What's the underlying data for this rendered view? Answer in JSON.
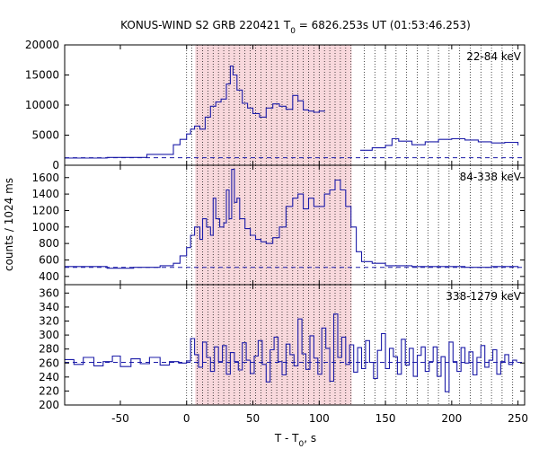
{
  "chart_data": {
    "type": "line",
    "title": {
      "main": "KONUS-WIND S2 GRB 220421 T",
      "sub": "0",
      "rest": " = 6826.253s UT (01:53:46.253)"
    },
    "xlabel": {
      "main": "T - T",
      "sub": "0",
      "rest": ", s"
    },
    "ylabel": "counts / 1024 ms",
    "xlim": [
      -92,
      255
    ],
    "x_ticks": [
      -50,
      0,
      50,
      100,
      150,
      200,
      250
    ],
    "x_tick_labels": [
      "-50",
      "0",
      "50",
      "100",
      "150",
      "200",
      "250"
    ],
    "shaded_interval": [
      6.5,
      124.5
    ],
    "dotted_verticals": [
      0,
      4,
      8,
      12,
      16,
      20,
      24,
      28,
      32,
      36,
      40,
      44,
      48,
      52,
      56,
      60,
      64,
      68,
      72,
      76,
      80,
      84,
      88,
      92,
      96,
      100,
      104,
      108,
      112,
      116,
      120,
      124,
      134,
      142,
      150,
      158,
      166,
      174,
      182,
      190,
      198,
      206,
      214,
      222,
      230,
      238,
      246
    ],
    "colors": {
      "curve": "#1c1ca8",
      "shade": "#f8d8dc",
      "grid": "#000000"
    },
    "panels": [
      {
        "band": "22-84 keV",
        "ylim": [
          0,
          20000
        ],
        "y_ticks": [
          0,
          5000,
          10000,
          15000,
          20000
        ],
        "y_tick_labels": [
          "0",
          "5000",
          "10000",
          "15000",
          "20000"
        ],
        "background": 1250,
        "series": [
          {
            "x": [
              -92,
              -60,
              -30,
              -10,
              -5,
              0,
              3,
              6,
              10,
              14,
              18,
              22,
              26,
              30,
              33,
              35,
              38,
              42,
              46,
              50,
              55,
              60,
              65,
              70,
              75,
              80,
              84,
              88,
              92,
              96,
              100,
              104
            ],
            "y": [
              1200,
              1300,
              1800,
              3400,
              4300,
              5200,
              6000,
              6500,
              6000,
              8000,
              9800,
              10500,
              11000,
              13500,
              16500,
              15000,
              12500,
              10300,
              9500,
              8600,
              8000,
              9500,
              10200,
              9800,
              9300,
              11600,
              10700,
              9200,
              9000,
              8800,
              9000,
              8900
            ]
          },
          {
            "x": [
              131,
              140,
              150,
              155,
              160,
              170,
              180,
              190,
              200,
              210,
              220,
              230,
              240,
              250
            ],
            "y": [
              2500,
              2900,
              3300,
              4400,
              4000,
              3400,
              3900,
              4300,
              4400,
              4200,
              3900,
              3700,
              3800,
              3300
            ]
          }
        ]
      },
      {
        "band": "84-338 keV",
        "ylim": [
          300,
          1750
        ],
        "y_ticks": [
          400,
          600,
          800,
          1000,
          1200,
          1400,
          1600
        ],
        "y_tick_labels": [
          "400",
          "600",
          "800",
          "1000",
          "1200",
          "1400",
          "1600"
        ],
        "background": 510,
        "series": [
          {
            "x": [
              -92,
              -60,
              -40,
              -20,
              -10,
              -5,
              0,
              3,
              6,
              10,
              12,
              15,
              18,
              20,
              22,
              25,
              28,
              30,
              32,
              34,
              36,
              38,
              40,
              44,
              48,
              52,
              56,
              60,
              65,
              70,
              75,
              80,
              84,
              88,
              92,
              96,
              100,
              104,
              108,
              112,
              116,
              120,
              124,
              128,
              132,
              140,
              150,
              170,
              190,
              210,
              230,
              250
            ],
            "y": [
              520,
              500,
              510,
              530,
              560,
              650,
              750,
              900,
              1000,
              850,
              1100,
              1000,
              900,
              1350,
              1100,
              1000,
              1050,
              1450,
              1100,
              1700,
              1300,
              1350,
              1100,
              980,
              900,
              850,
              820,
              800,
              870,
              1000,
              1250,
              1350,
              1400,
              1220,
              1350,
              1250,
              1250,
              1400,
              1450,
              1570,
              1450,
              1250,
              1000,
              700,
              580,
              560,
              530,
              520,
              520,
              510,
              520,
              500
            ]
          }
        ]
      },
      {
        "band": "338-1279 keV",
        "ylim": [
          200,
          372
        ],
        "y_ticks": [
          200,
          220,
          240,
          260,
          280,
          300,
          320,
          340,
          360
        ],
        "y_tick_labels": [
          "200",
          "220",
          "240",
          "260",
          "280",
          "300",
          "320",
          "340",
          "360"
        ],
        "background": 261,
        "series": [
          {
            "x": [
              -92,
              -85,
              -78,
              -70,
              -63,
              -56,
              -50,
              -42,
              -35,
              -28,
              -20,
              -13,
              -6,
              0,
              3,
              6,
              9,
              12,
              15,
              18,
              21,
              24,
              27,
              30,
              33,
              36,
              39,
              42,
              45,
              48,
              51,
              54,
              57,
              60,
              63,
              66,
              69,
              72,
              75,
              78,
              81,
              84,
              87,
              90,
              93,
              96,
              99,
              102,
              105,
              108,
              111,
              114,
              117,
              120,
              123,
              126,
              129,
              132,
              135,
              138,
              141,
              144,
              147,
              150,
              153,
              156,
              159,
              162,
              165,
              168,
              171,
              174,
              177,
              180,
              183,
              186,
              189,
              192,
              195,
              198,
              201,
              204,
              207,
              210,
              213,
              216,
              219,
              222,
              225,
              228,
              231,
              234,
              237,
              240,
              243,
              246,
              249
            ],
            "y": [
              265,
              258,
              268,
              256,
              262,
              270,
              255,
              266,
              259,
              268,
              257,
              262,
              260,
              263,
              295,
              272,
              254,
              290,
              268,
              248,
              283,
              262,
              285,
              244,
              275,
              262,
              250,
              289,
              264,
              245,
              270,
              292,
              258,
              233,
              279,
              297,
              262,
              243,
              287,
              272,
              256,
              323,
              273,
              251,
              299,
              267,
              244,
              310,
              281,
              234,
              330,
              268,
              297,
              258,
              286,
              247,
              282,
              252,
              292,
              261,
              238,
              278,
              302,
              252,
              281,
              269,
              244,
              294,
              257,
              281,
              241,
              271,
              283,
              248,
              262,
              283,
              241,
              269,
              219,
              290,
              262,
              248,
              282,
              260,
              276,
              243,
              268,
              285,
              254,
              264,
              279,
              244,
              262,
              272,
              258,
              264,
              261
            ]
          }
        ]
      }
    ]
  }
}
